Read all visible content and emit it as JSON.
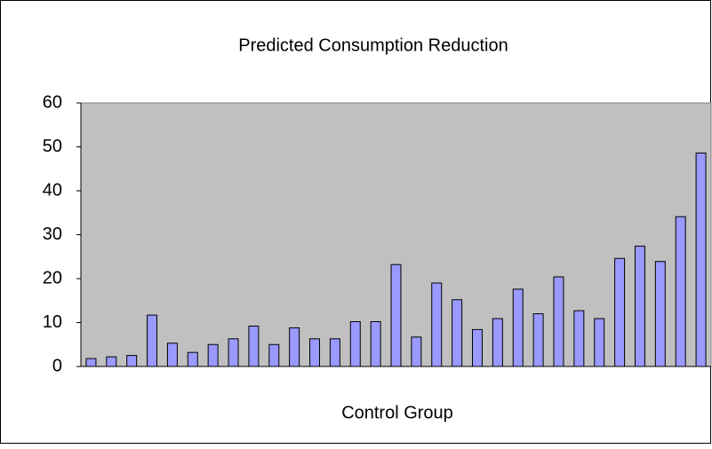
{
  "chart_data": {
    "type": "bar",
    "title": "Predicted Consumption Reduction",
    "x_label": "Control Group",
    "categories": [
      null,
      null,
      null,
      null,
      null,
      null,
      null,
      null,
      null,
      null,
      null,
      null,
      null,
      null,
      null,
      null,
      null,
      null,
      null,
      null,
      null,
      null,
      null,
      null,
      null,
      null,
      null,
      null,
      null,
      null,
      null
    ],
    "values": [
      1.8,
      2.2,
      2.5,
      11.7,
      5.3,
      3.2,
      5.0,
      6.3,
      9.2,
      5.0,
      8.8,
      6.3,
      6.3,
      10.2,
      10.2,
      23.2,
      6.7,
      19.0,
      15.2,
      8.4,
      10.9,
      17.6,
      12.0,
      20.4,
      12.7,
      10.9,
      24.6,
      27.4,
      23.9,
      34.1,
      48.6
    ],
    "color": "#9999ff",
    "ylim": [
      0,
      60
    ],
    "yticks": [
      0,
      10,
      20,
      30,
      40,
      50,
      60
    ],
    "grid": false
  }
}
